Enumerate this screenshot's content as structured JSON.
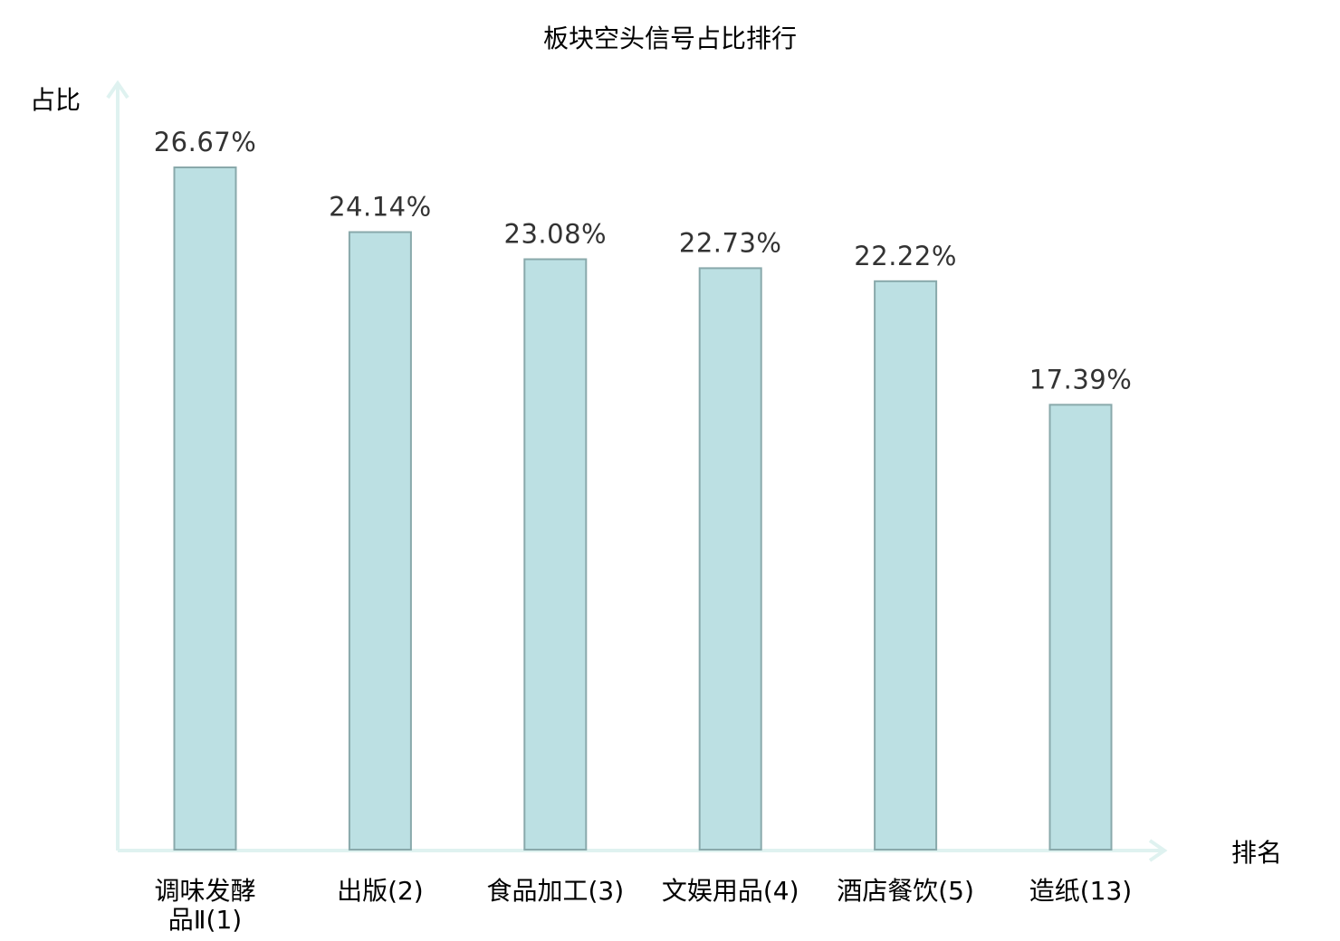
{
  "chart_data": {
    "type": "bar",
    "title": "板块空头信号占比排行",
    "ylabel": "占比",
    "xlabel": "排名",
    "ylim": [
      0,
      30
    ],
    "grid": false,
    "categories": [
      "调味发酵品Ⅱ(1)",
      "出版(2)",
      "食品加工(3)",
      "文娱用品(4)",
      "酒店餐饮(5)",
      "造纸(13)"
    ],
    "category_lines": [
      [
        "调味发酵",
        "品Ⅱ(1)"
      ],
      [
        "出版(2)"
      ],
      [
        "食品加工(3)"
      ],
      [
        "文娱用品(4)"
      ],
      [
        "酒店餐饮(5)"
      ],
      [
        "造纸(13)"
      ]
    ],
    "values": [
      26.67,
      24.14,
      23.08,
      22.73,
      22.22,
      17.39
    ],
    "value_labels": [
      "26.67%",
      "24.14%",
      "23.08%",
      "22.73%",
      "22.22%",
      "17.39%"
    ],
    "highlight_index": 5
  },
  "colors": {
    "bar_fill": "#bce0e3",
    "bar_stroke": "#89a9ab",
    "axis": "#dff2f0",
    "highlight_label": "#e01f1f",
    "normal_label": "#000000",
    "value_label": "#333333"
  }
}
